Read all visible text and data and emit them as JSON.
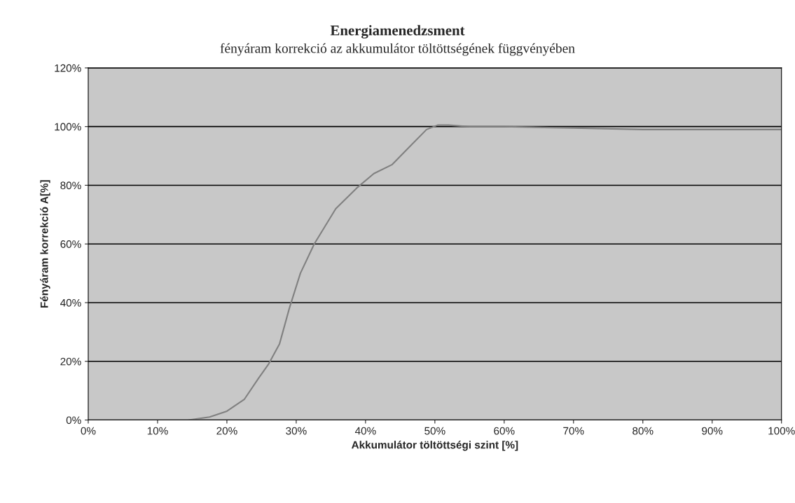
{
  "chart_data": {
    "type": "line",
    "title": "Energiamenedzsment",
    "subtitle": "fényáram korrekció az akkumulátor töltöttségének függvényében",
    "xlabel": "Akkumulátor töltöttségi szint [%]",
    "ylabel": "Fényáram korrekció A[%]",
    "x": [
      14.5,
      17.5,
      20,
      22.5,
      24.5,
      26,
      27.6,
      29,
      30.6,
      32.6,
      35.7,
      38.7,
      41.2,
      43.8,
      46.3,
      48.8,
      50.4,
      52,
      55,
      60,
      70,
      80,
      90,
      100
    ],
    "series": [
      {
        "color": "#808080",
        "values": [
          0,
          1,
          3,
          7,
          14,
          19,
          26,
          38,
          50,
          60,
          72,
          79,
          84,
          87,
          93,
          99,
          100.5,
          100.5,
          100,
          100,
          99.5,
          99,
          99,
          99
        ]
      }
    ],
    "xlim": [
      0,
      100
    ],
    "ylim": [
      0,
      120
    ],
    "xticks": [
      {
        "value": 0,
        "label": "0%"
      },
      {
        "value": 10,
        "label": "10%"
      },
      {
        "value": 20,
        "label": "20%"
      },
      {
        "value": 30,
        "label": "30%"
      },
      {
        "value": 40,
        "label": "40%"
      },
      {
        "value": 50,
        "label": "50%"
      },
      {
        "value": 60,
        "label": "60%"
      },
      {
        "value": 70,
        "label": "70%"
      },
      {
        "value": 80,
        "label": "80%"
      },
      {
        "value": 90,
        "label": "90%"
      },
      {
        "value": 100,
        "label": "100%"
      }
    ],
    "yticks": [
      {
        "value": 0,
        "label": "0%"
      },
      {
        "value": 20,
        "label": "20%"
      },
      {
        "value": 40,
        "label": "40%"
      },
      {
        "value": 60,
        "label": "60%"
      },
      {
        "value": 80,
        "label": "80%"
      },
      {
        "value": 100,
        "label": "100%"
      },
      {
        "value": 120,
        "label": "120%"
      }
    ],
    "grid": "y",
    "legend": false,
    "marker": "none",
    "line_style": "solid"
  }
}
